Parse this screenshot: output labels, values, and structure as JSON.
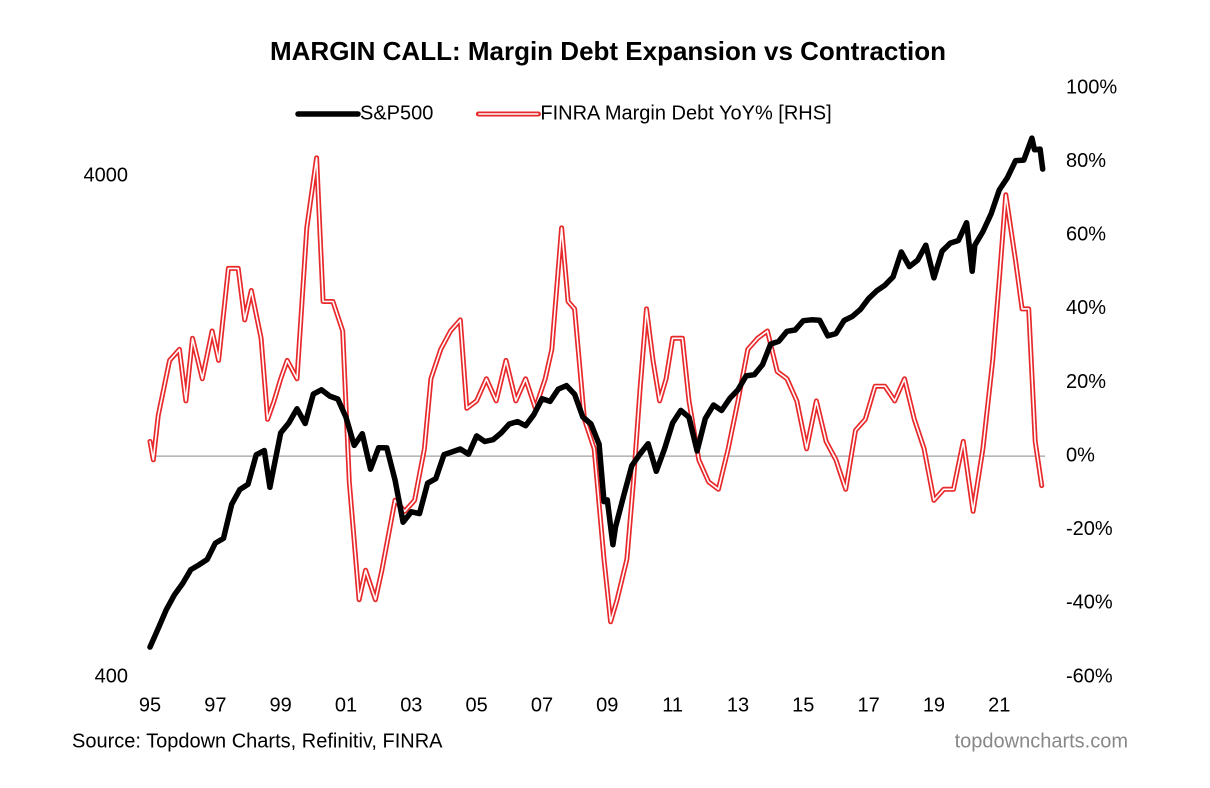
{
  "chart_data": {
    "type": "line",
    "title": "MARGIN CALL: Margin Debt Expansion vs Contraction",
    "source": "Source: Topdown Charts, Refinitiv, FINRA",
    "watermark": "topdowncharts.com",
    "xlim": [
      1995,
      2022.4
    ],
    "xticks": [
      {
        "value": 1995,
        "label": "95"
      },
      {
        "value": 1997,
        "label": "97"
      },
      {
        "value": 1999,
        "label": "99"
      },
      {
        "value": 2001,
        "label": "01"
      },
      {
        "value": 2003,
        "label": "03"
      },
      {
        "value": 2005,
        "label": "05"
      },
      {
        "value": 2007,
        "label": "07"
      },
      {
        "value": 2009,
        "label": "09"
      },
      {
        "value": 2011,
        "label": "11"
      },
      {
        "value": 2013,
        "label": "13"
      },
      {
        "value": 2015,
        "label": "15"
      },
      {
        "value": 2017,
        "label": "17"
      },
      {
        "value": 2019,
        "label": "19"
      },
      {
        "value": 2021,
        "label": "21"
      }
    ],
    "ylim": [
      400,
      6000
    ],
    "yticks": [
      400,
      4000
    ],
    "log_y": true,
    "y2lim": [
      -60,
      100
    ],
    "y2ticks": [
      {
        "value": -60,
        "label": "-60%"
      },
      {
        "value": -40,
        "label": "-40%"
      },
      {
        "value": -20,
        "label": "-20%"
      },
      {
        "value": 0,
        "label": "0%"
      },
      {
        "value": 20,
        "label": "20%"
      },
      {
        "value": 40,
        "label": "40%"
      },
      {
        "value": 60,
        "label": "60%"
      },
      {
        "value": 80,
        "label": "80%"
      },
      {
        "value": 100,
        "label": "100%"
      }
    ],
    "reference_line": {
      "axis": "y2",
      "value": 0,
      "color": "#a0a0a0"
    },
    "legend": "top",
    "series": [
      {
        "name": "S&P500",
        "color": "#000000",
        "style": "thick",
        "x": [
          1995.0,
          1995.25,
          1995.5,
          1995.75,
          1996.0,
          1996.25,
          1996.5,
          1996.75,
          1997.0,
          1997.25,
          1997.5,
          1997.75,
          1998.0,
          1998.25,
          1998.5,
          1998.67,
          1998.75,
          1999.0,
          1999.25,
          1999.5,
          1999.75,
          2000.0,
          2000.25,
          2000.5,
          2000.75,
          2001.0,
          2001.25,
          2001.5,
          2001.75,
          2002.0,
          2002.25,
          2002.5,
          2002.75,
          2003.0,
          2003.25,
          2003.5,
          2003.75,
          2004.0,
          2004.25,
          2004.5,
          2004.75,
          2005.0,
          2005.25,
          2005.5,
          2005.75,
          2006.0,
          2006.25,
          2006.5,
          2006.75,
          2007.0,
          2007.25,
          2007.5,
          2007.75,
          2008.0,
          2008.25,
          2008.5,
          2008.75,
          2008.9,
          2009.0,
          2009.17,
          2009.25,
          2009.5,
          2009.75,
          2010.0,
          2010.25,
          2010.5,
          2010.75,
          2011.0,
          2011.25,
          2011.5,
          2011.75,
          2012.0,
          2012.25,
          2012.5,
          2012.75,
          2013.0,
          2013.25,
          2013.5,
          2013.75,
          2014.0,
          2014.25,
          2014.5,
          2014.75,
          2015.0,
          2015.25,
          2015.5,
          2015.75,
          2016.0,
          2016.25,
          2016.5,
          2016.75,
          2017.0,
          2017.25,
          2017.5,
          2017.75,
          2018.0,
          2018.25,
          2018.5,
          2018.75,
          2019.0,
          2019.25,
          2019.5,
          2019.75,
          2020.0,
          2020.17,
          2020.25,
          2020.5,
          2020.75,
          2021.0,
          2021.25,
          2021.5,
          2021.75,
          2022.0,
          2022.08,
          2022.25,
          2022.33
        ],
        "values": [
          459,
          500,
          545,
          584,
          615,
          655,
          670,
          687,
          740,
          757,
          885,
          947,
          970,
          1111,
          1133,
          957,
          1017,
          1229,
          1286,
          1373,
          1283,
          1469,
          1498,
          1455,
          1436,
          1320,
          1160,
          1224,
          1040,
          1148,
          1147,
          990,
          815,
          855,
          848,
          975,
          996,
          1112,
          1126,
          1141,
          1114,
          1212,
          1181,
          1191,
          1228,
          1280,
          1294,
          1270,
          1336,
          1438,
          1420,
          1503,
          1527,
          1468,
          1322,
          1280,
          1166,
          896,
          903,
          735,
          797,
          919,
          1057,
          1115,
          1169,
          1030,
          1141,
          1286,
          1363,
          1320,
          1131,
          1312,
          1397,
          1362,
          1440,
          1498,
          1597,
          1606,
          1681,
          1848,
          1872,
          1960,
          1972,
          2058,
          2067,
          2063,
          1920,
          1940,
          2060,
          2099,
          2168,
          2278,
          2362,
          2423,
          2519,
          2823,
          2640,
          2718,
          2913,
          2506,
          2834,
          2941,
          2976,
          3230,
          2584,
          2912,
          3100,
          3363,
          3756,
          3972,
          4297,
          4307,
          4766,
          4515,
          4530,
          4132
        ]
      },
      {
        "name": "FINRA Margin Debt YoY% [RHS]",
        "color": "#e8292b",
        "style": "double",
        "axis": "y2",
        "x": [
          1995.0,
          1995.1,
          1995.25,
          1995.6,
          1995.9,
          1996.1,
          1996.3,
          1996.6,
          1996.9,
          1997.1,
          1997.4,
          1997.7,
          1997.9,
          1998.1,
          1998.4,
          1998.6,
          1998.8,
          1999.0,
          1999.2,
          1999.5,
          1999.8,
          2000.1,
          2000.3,
          2000.6,
          2000.9,
          2001.1,
          2001.4,
          2001.6,
          2001.9,
          2002.1,
          2002.5,
          2002.8,
          2003.1,
          2003.4,
          2003.6,
          2003.9,
          2004.2,
          2004.5,
          2004.7,
          2005.0,
          2005.3,
          2005.6,
          2005.9,
          2006.2,
          2006.5,
          2006.8,
          2007.1,
          2007.3,
          2007.6,
          2007.8,
          2008.0,
          2008.3,
          2008.6,
          2008.9,
          2009.1,
          2009.3,
          2009.6,
          2009.8,
          2010.0,
          2010.2,
          2010.4,
          2010.6,
          2010.8,
          2011.0,
          2011.3,
          2011.5,
          2011.8,
          2012.1,
          2012.4,
          2012.7,
          2013.0,
          2013.3,
          2013.6,
          2013.9,
          2014.2,
          2014.5,
          2014.8,
          2015.1,
          2015.4,
          2015.7,
          2016.0,
          2016.3,
          2016.6,
          2016.9,
          2017.2,
          2017.5,
          2017.8,
          2018.1,
          2018.4,
          2018.7,
          2019.0,
          2019.3,
          2019.6,
          2019.9,
          2020.2,
          2020.5,
          2020.8,
          2021.0,
          2021.2,
          2021.5,
          2021.7,
          2021.9,
          2022.1,
          2022.3
        ],
        "values": [
          4,
          -1,
          11,
          26,
          29,
          15,
          32,
          21,
          34,
          26,
          51,
          51,
          37,
          45,
          32,
          10,
          15,
          21,
          26,
          21,
          62,
          81,
          42,
          42,
          34,
          -7,
          -39,
          -31,
          -39,
          -31,
          -12,
          -15,
          -12,
          2,
          21,
          29,
          34,
          37,
          13,
          15,
          21,
          15,
          26,
          15,
          21,
          13,
          21,
          29,
          62,
          42,
          40,
          10,
          2,
          -28,
          -45,
          -39,
          -28,
          -7,
          18,
          40,
          26,
          15,
          21,
          32,
          32,
          15,
          -1,
          -7,
          -9,
          2,
          15,
          29,
          32,
          34,
          23,
          21,
          15,
          2,
          15,
          4,
          -1,
          -9,
          7,
          10,
          19,
          19,
          15,
          21,
          10,
          2,
          -12,
          -9,
          -9,
          4,
          -15,
          2,
          26,
          48,
          71,
          53,
          40,
          40,
          4,
          -8
        ]
      }
    ]
  }
}
